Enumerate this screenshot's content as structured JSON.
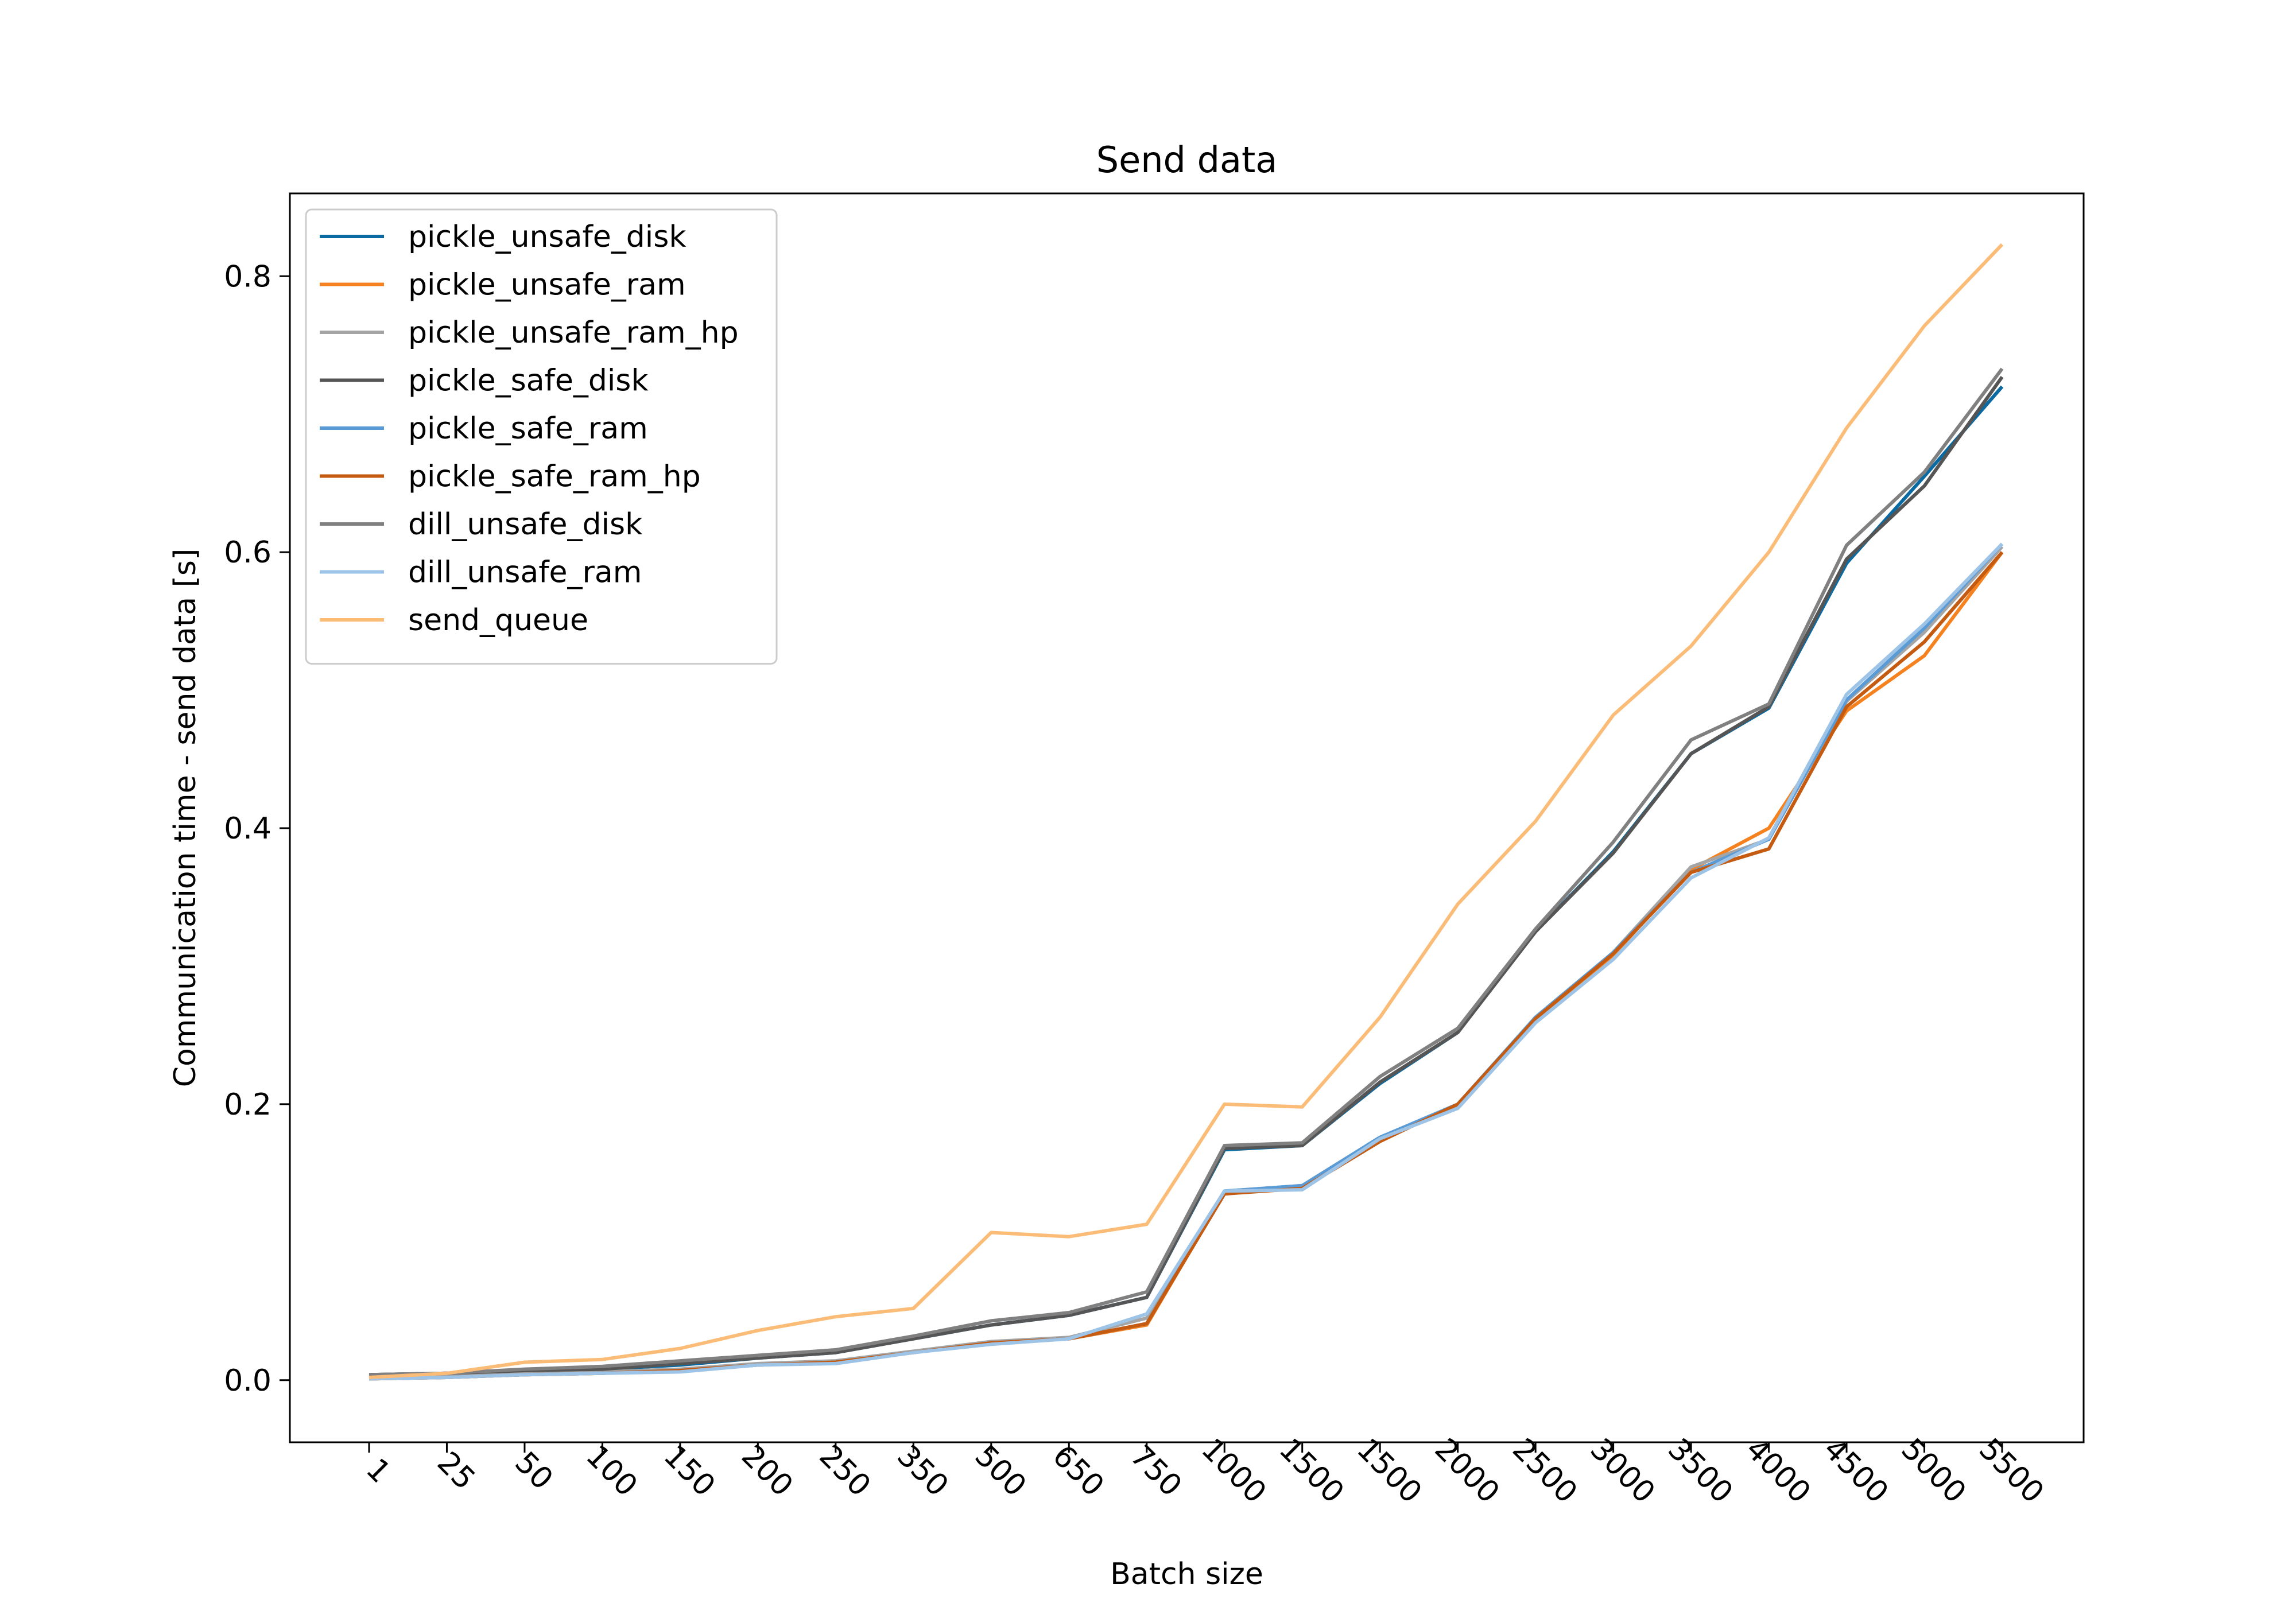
{
  "chart_data": {
    "type": "line",
    "title": "Send data",
    "xlabel": "Batch size",
    "ylabel": "Communication time - send data [s]",
    "categories": [
      "1",
      "25",
      "50",
      "100",
      "150",
      "200",
      "250",
      "350",
      "500",
      "650",
      "750",
      "1000",
      "1500",
      "1500",
      "2000",
      "2500",
      "3000",
      "3500",
      "4000",
      "4500",
      "5000",
      "5500"
    ],
    "ylim": [
      -0.045,
      0.86
    ],
    "yticks": [
      0.0,
      0.2,
      0.4,
      0.6,
      0.8
    ],
    "ytick_labels": [
      "0.0",
      "0.2",
      "0.4",
      "0.6",
      "0.8"
    ],
    "grid": false,
    "legend_position": "top-left",
    "series": [
      {
        "name": "pickle_unsafe_disk",
        "color": "#0a6aa1",
        "values": [
          0.004,
          0.005,
          0.007,
          0.008,
          0.011,
          0.016,
          0.02,
          0.03,
          0.04,
          0.047,
          0.06,
          0.167,
          0.17,
          0.215,
          0.252,
          0.325,
          0.383,
          0.454,
          0.487,
          0.592,
          0.655,
          0.72
        ]
      },
      {
        "name": "pickle_unsafe_ram",
        "color": "#f5821f",
        "values": [
          0.001,
          0.002,
          0.004,
          0.005,
          0.007,
          0.011,
          0.013,
          0.02,
          0.027,
          0.03,
          0.04,
          0.136,
          0.14,
          0.174,
          0.199,
          0.262,
          0.308,
          0.37,
          0.4,
          0.485,
          0.525,
          0.6
        ]
      },
      {
        "name": "pickle_unsafe_ram_hp",
        "color": "#a5a5a5",
        "values": [
          0.002,
          0.003,
          0.005,
          0.006,
          0.008,
          0.012,
          0.014,
          0.021,
          0.028,
          0.031,
          0.045,
          0.137,
          0.141,
          0.176,
          0.199,
          0.262,
          0.31,
          0.372,
          0.392,
          0.492,
          0.542,
          0.604
        ]
      },
      {
        "name": "pickle_safe_disk",
        "color": "#555555",
        "values": [
          0.004,
          0.005,
          0.007,
          0.008,
          0.012,
          0.016,
          0.02,
          0.03,
          0.04,
          0.047,
          0.06,
          0.168,
          0.17,
          0.216,
          0.252,
          0.325,
          0.382,
          0.454,
          0.488,
          0.595,
          0.648,
          0.727
        ]
      },
      {
        "name": "pickle_safe_ram",
        "color": "#5b9bd5",
        "values": [
          0.001,
          0.002,
          0.004,
          0.005,
          0.007,
          0.011,
          0.013,
          0.02,
          0.027,
          0.03,
          0.041,
          0.137,
          0.141,
          0.176,
          0.2,
          0.263,
          0.31,
          0.368,
          0.392,
          0.493,
          0.545,
          0.606
        ]
      },
      {
        "name": "pickle_safe_ram_hp",
        "color": "#c55a11",
        "values": [
          0.001,
          0.002,
          0.004,
          0.005,
          0.007,
          0.011,
          0.013,
          0.02,
          0.027,
          0.03,
          0.041,
          0.135,
          0.139,
          0.173,
          0.2,
          0.262,
          0.309,
          0.368,
          0.385,
          0.488,
          0.535,
          0.6
        ]
      },
      {
        "name": "dill_unsafe_disk",
        "color": "#808080",
        "values": [
          0.004,
          0.005,
          0.008,
          0.01,
          0.014,
          0.018,
          0.022,
          0.032,
          0.043,
          0.049,
          0.064,
          0.17,
          0.172,
          0.22,
          0.255,
          0.327,
          0.39,
          0.464,
          0.49,
          0.605,
          0.658,
          0.733
        ]
      },
      {
        "name": "dill_unsafe_ram",
        "color": "#9dc3e6",
        "values": [
          0.001,
          0.002,
          0.004,
          0.005,
          0.006,
          0.011,
          0.012,
          0.02,
          0.026,
          0.03,
          0.048,
          0.137,
          0.138,
          0.175,
          0.197,
          0.259,
          0.305,
          0.364,
          0.393,
          0.497,
          0.548,
          0.606
        ]
      },
      {
        "name": "send_queue",
        "color": "#fbbc78",
        "values": [
          0.002,
          0.005,
          0.013,
          0.015,
          0.023,
          0.036,
          0.046,
          0.052,
          0.107,
          0.104,
          0.113,
          0.2,
          0.198,
          0.263,
          0.345,
          0.405,
          0.482,
          0.532,
          0.6,
          0.69,
          0.764,
          0.823
        ]
      }
    ]
  }
}
